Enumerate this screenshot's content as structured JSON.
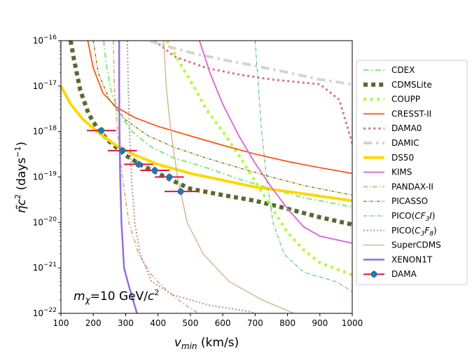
{
  "chart_data": {
    "type": "line",
    "title": "",
    "xlabel": "v_min (km/s)",
    "ylabel": "η̃c² (days⁻¹)",
    "xlim": [
      100,
      1000
    ],
    "ylim": [
      1e-22,
      1e-16
    ],
    "yscale": "log",
    "grid": false,
    "legend_position": "right",
    "annotation": "m_χ=10 GeV/c²",
    "x_ticks": [
      "100",
      "200",
      "300",
      "400",
      "500",
      "600",
      "700",
      "800",
      "900",
      "1000"
    ],
    "y_ticks": [
      {
        "v": 1e-22,
        "base": "10",
        "exp": "−22"
      },
      {
        "v": 1e-21,
        "base": "10",
        "exp": "−21"
      },
      {
        "v": 1e-20,
        "base": "10",
        "exp": "−20"
      },
      {
        "v": 1e-19,
        "base": "10",
        "exp": "−19"
      },
      {
        "v": 1e-18,
        "base": "10",
        "exp": "−18"
      },
      {
        "v": 1e-17,
        "base": "10",
        "exp": "−17"
      },
      {
        "v": 1e-16,
        "base": "10",
        "exp": "−16"
      }
    ],
    "series": [
      {
        "name": "CDEX",
        "color": "#90ee90",
        "style": "dashdot",
        "width": 2.5,
        "points": [
          [
            232,
            1e-16
          ],
          [
            240,
            3e-17
          ],
          [
            255,
            8e-18
          ],
          [
            280,
            2.5e-18
          ],
          [
            320,
            1e-18
          ],
          [
            380,
            4.5e-19
          ],
          [
            450,
            2.6e-19
          ],
          [
            550,
            1.6e-19
          ],
          [
            650,
            9e-20
          ],
          [
            750,
            5.5e-20
          ],
          [
            850,
            3.5e-20
          ],
          [
            1000,
            2.2e-20
          ]
        ]
      },
      {
        "name": "CDMSLite",
        "color": "#556b2f",
        "style": "dotted-square",
        "width": 6,
        "points": [
          [
            130,
            1e-16
          ],
          [
            140,
            4e-17
          ],
          [
            160,
            8e-18
          ],
          [
            185,
            2.5e-18
          ],
          [
            215,
            1.1e-18
          ],
          [
            250,
            6e-19
          ],
          [
            300,
            3e-19
          ],
          [
            350,
            1.8e-19
          ],
          [
            400,
            1.2e-19
          ],
          [
            450,
            8e-20
          ],
          [
            500,
            5.5e-20
          ],
          [
            600,
            4e-20
          ],
          [
            700,
            3e-20
          ],
          [
            800,
            2e-20
          ],
          [
            900,
            1.3e-20
          ],
          [
            1000,
            9e-21
          ]
        ]
      },
      {
        "name": "COUPP",
        "color": "#adff2f",
        "style": "dotted",
        "width": 4,
        "points": [
          [
            428,
            1e-16
          ],
          [
            470,
            3e-17
          ],
          [
            510,
            1e-17
          ],
          [
            550,
            3e-18
          ],
          [
            600,
            1e-18
          ],
          [
            650,
            3e-19
          ],
          [
            700,
            8e-20
          ],
          [
            750,
            2.2e-20
          ],
          [
            800,
            6e-21
          ],
          [
            850,
            2.5e-21
          ],
          [
            900,
            1.3e-21
          ],
          [
            1000,
            7e-22
          ]
        ]
      },
      {
        "name": "CRESST-II",
        "color": "#ff4500",
        "style": "solid",
        "width": 1.6,
        "points": [
          [
            183,
            1e-16
          ],
          [
            200,
            2.5e-17
          ],
          [
            230,
            7e-18
          ],
          [
            270,
            3.5e-18
          ],
          [
            330,
            2e-18
          ],
          [
            400,
            1.3e-18
          ],
          [
            500,
            8e-19
          ],
          [
            600,
            5e-19
          ],
          [
            700,
            3.2e-19
          ],
          [
            800,
            2.2e-19
          ],
          [
            900,
            1.6e-19
          ],
          [
            1000,
            1.2e-19
          ]
        ]
      },
      {
        "name": "DAMA0",
        "color": "#db7093",
        "style": "dotted",
        "width": 3,
        "points": [
          [
            390,
            1e-16
          ],
          [
            450,
            4.5e-17
          ],
          [
            550,
            2.5e-17
          ],
          [
            650,
            1.8e-17
          ],
          [
            750,
            1.4e-17
          ],
          [
            900,
            1.1e-17
          ],
          [
            960,
            5e-18
          ],
          [
            1000,
            5.5e-19
          ]
        ]
      },
      {
        "name": "DAMIC",
        "color": "#d3d3d3",
        "style": "dashdot",
        "width": 4,
        "points": [
          [
            375,
            1e-16
          ],
          [
            400,
            8.5e-17
          ],
          [
            500,
            5.5e-17
          ],
          [
            600,
            3.8e-17
          ],
          [
            700,
            2.8e-17
          ],
          [
            800,
            2e-17
          ],
          [
            900,
            1.4e-17
          ],
          [
            1000,
            1.1e-17
          ]
        ]
      },
      {
        "name": "DS50",
        "color": "#ffd700",
        "style": "solid",
        "width": 4,
        "points": [
          [
            100,
            1e-17
          ],
          [
            130,
            4e-18
          ],
          [
            170,
            1.8e-18
          ],
          [
            220,
            9e-19
          ],
          [
            270,
            5e-19
          ],
          [
            330,
            3e-19
          ],
          [
            400,
            1.9e-19
          ],
          [
            500,
            1.2e-19
          ],
          [
            600,
            8.5e-20
          ],
          [
            700,
            6e-20
          ],
          [
            800,
            4.8e-20
          ],
          [
            900,
            3.8e-20
          ],
          [
            1000,
            3e-20
          ]
        ]
      },
      {
        "name": "KIMS",
        "color": "#da70d6",
        "style": "solid",
        "width": 2,
        "points": [
          [
            528,
            1e-16
          ],
          [
            560,
            2e-17
          ],
          [
            600,
            4e-18
          ],
          [
            650,
            8e-19
          ],
          [
            700,
            2e-19
          ],
          [
            750,
            6e-20
          ],
          [
            800,
            2e-20
          ],
          [
            850,
            8e-21
          ],
          [
            900,
            5e-21
          ],
          [
            1000,
            3.5e-21
          ]
        ]
      },
      {
        "name": "PANDAX-II",
        "color": "#deb887",
        "style": "dashdot",
        "width": 2,
        "points": [
          [
            262,
            1e-16
          ],
          [
            265,
            1e-17
          ],
          [
            275,
            1e-18
          ],
          [
            290,
            1e-19
          ],
          [
            310,
            1e-20
          ],
          [
            340,
            2e-21
          ],
          [
            380,
            7e-22
          ],
          [
            430,
            3e-22
          ],
          [
            480,
            1.6e-22
          ],
          [
            525,
            1e-22
          ]
        ]
      },
      {
        "name": "PICASSO",
        "color": "#808000",
        "style": "dashdot",
        "width": 1.4,
        "points": [
          [
            200,
            1e-16
          ],
          [
            215,
            2e-17
          ],
          [
            250,
            5e-18
          ],
          [
            300,
            1.8e-18
          ],
          [
            370,
            8e-19
          ],
          [
            450,
            4.5e-19
          ],
          [
            550,
            2.6e-19
          ],
          [
            650,
            1.6e-19
          ],
          [
            750,
            1e-19
          ],
          [
            850,
            6.5e-20
          ],
          [
            1000,
            4e-20
          ]
        ]
      },
      {
        "name": "PICO(CF₃I)",
        "color": "#3cb371",
        "style": "dashdot-thin",
        "width": 1,
        "points": [
          [
            700,
            1e-16
          ],
          [
            710,
            1e-17
          ],
          [
            720,
            1e-18
          ],
          [
            735,
            1e-19
          ],
          [
            755,
            1e-20
          ],
          [
            790,
            2e-21
          ],
          [
            850,
            8e-22
          ],
          [
            950,
            5e-22
          ],
          [
            1000,
            3e-22
          ]
        ]
      },
      {
        "name": "PICO(C₃F₈)",
        "color": "#bc8f8f",
        "style": "dotted",
        "width": 2,
        "points": [
          [
            305,
            1e-16
          ],
          [
            308,
            1e-17
          ],
          [
            312,
            1e-18
          ],
          [
            318,
            1e-19
          ],
          [
            328,
            1e-20
          ],
          [
            345,
            2e-21
          ],
          [
            380,
            5e-22
          ],
          [
            450,
            2.5e-22
          ],
          [
            560,
            1.5e-22
          ],
          [
            680,
            1.1e-22
          ],
          [
            700,
            1e-22
          ]
        ]
      },
      {
        "name": "SuperCDMS",
        "color": "#d2b48c",
        "style": "solid",
        "width": 1.4,
        "points": [
          [
            418,
            1e-16
          ],
          [
            425,
            1e-17
          ],
          [
            440,
            1e-18
          ],
          [
            460,
            1e-19
          ],
          [
            490,
            1e-20
          ],
          [
            540,
            2e-21
          ],
          [
            620,
            5e-22
          ],
          [
            720,
            2e-22
          ],
          [
            820,
            1e-22
          ]
        ]
      },
      {
        "name": "XENON1T",
        "color": "#9370db",
        "style": "solid",
        "width": 2.5,
        "points": [
          [
            280,
            1e-16
          ],
          [
            280,
            1e-17
          ],
          [
            281,
            1e-18
          ],
          [
            283,
            1e-19
          ],
          [
            287,
            1e-20
          ],
          [
            295,
            1e-21
          ],
          [
            310,
            4e-22
          ],
          [
            335,
            1e-22
          ]
        ]
      }
    ],
    "dama_points": [
      {
        "x": 225,
        "y": 1.05e-18,
        "xerr": 45
      },
      {
        "x": 290,
        "y": 3.8e-19,
        "xerr": 45
      },
      {
        "x": 340,
        "y": 1.9e-19,
        "xerr": 45
      },
      {
        "x": 390,
        "y": 1.4e-19,
        "xerr": 45
      },
      {
        "x": 435,
        "y": 1e-19,
        "xerr": 45
      },
      {
        "x": 470,
        "y": 4.8e-20,
        "xerr": 50
      }
    ],
    "dama": {
      "name": "DAMA",
      "marker_color": "#1f77b4",
      "err_color": "#dc143c"
    },
    "legend_order": [
      "CDEX",
      "CDMSLite",
      "COUPP",
      "CRESST-II",
      "DAMA0",
      "DAMIC",
      "DS50",
      "KIMS",
      "PANDAX-II",
      "PICASSO",
      "PICO(CF₃I)",
      "PICO(C₃F₈)",
      "SuperCDMS",
      "XENON1T",
      "DAMA"
    ]
  }
}
